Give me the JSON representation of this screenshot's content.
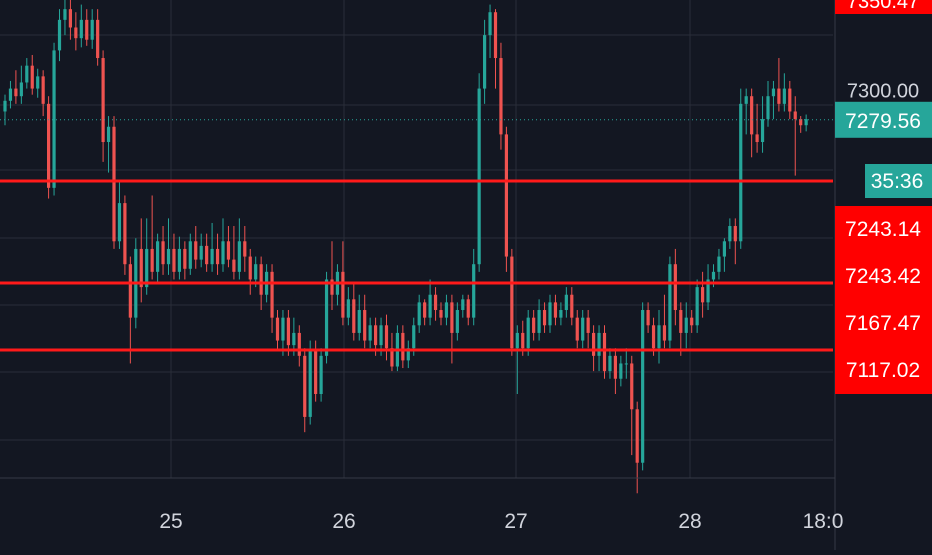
{
  "chart_data": {
    "type": "candlestick",
    "x_ticks": [
      "25",
      "26",
      "27",
      "28",
      "18:0"
    ],
    "y_ticks": [
      "7300.00"
    ],
    "ylim": [
      7045,
      7358
    ],
    "grid": true,
    "colors": {
      "background": "#131722",
      "up": "#26a69a",
      "down": "#ef5350",
      "level_line": "#ff1a1a",
      "price_tag": "#26a69a",
      "level_tag": "#ff0000",
      "grid": "#2a2e39",
      "text": "#d1d4dc"
    },
    "current_price": {
      "value": 7279.56,
      "label": "7279.56"
    },
    "countdown": "35:36",
    "horizontal_levels": [
      {
        "value": 7243.14,
        "label": "7243.14"
      },
      {
        "value": 7243.42,
        "label": "7243.42"
      },
      {
        "value": 7167.47,
        "label": "7167.47"
      },
      {
        "value": 7117.02,
        "label": "7117.02"
      }
    ],
    "top_clipped_label": "7350.47",
    "candles": [
      [
        7285,
        7292,
        7276,
        7296
      ],
      [
        7292,
        7300,
        7287,
        7305
      ],
      [
        7300,
        7295,
        7290,
        7312
      ],
      [
        7295,
        7304,
        7290,
        7315
      ],
      [
        7304,
        7315,
        7300,
        7320
      ],
      [
        7315,
        7300,
        7296,
        7322
      ],
      [
        7300,
        7308,
        7294,
        7313
      ],
      [
        7308,
        7290,
        7282,
        7312
      ],
      [
        7290,
        7235,
        7228,
        7295
      ],
      [
        7235,
        7325,
        7230,
        7330
      ],
      [
        7325,
        7345,
        7318,
        7352
      ],
      [
        7345,
        7352,
        7335,
        7360
      ],
      [
        7352,
        7340,
        7332,
        7360
      ],
      [
        7340,
        7333,
        7325,
        7350
      ],
      [
        7333,
        7345,
        7327,
        7355
      ],
      [
        7345,
        7332,
        7328,
        7352
      ],
      [
        7332,
        7345,
        7326,
        7352
      ],
      [
        7345,
        7320,
        7315,
        7352
      ],
      [
        7320,
        7265,
        7252,
        7325
      ],
      [
        7265,
        7275,
        7245,
        7282
      ],
      [
        7275,
        7200,
        7195,
        7282
      ],
      [
        7200,
        7225,
        7195,
        7240
      ],
      [
        7225,
        7185,
        7178,
        7230
      ],
      [
        7185,
        7150,
        7120,
        7190
      ],
      [
        7150,
        7195,
        7143,
        7202
      ],
      [
        7195,
        7170,
        7160,
        7215
      ],
      [
        7170,
        7195,
        7165,
        7215
      ],
      [
        7195,
        7180,
        7175,
        7230
      ],
      [
        7180,
        7200,
        7172,
        7205
      ],
      [
        7200,
        7185,
        7178,
        7210
      ],
      [
        7185,
        7195,
        7178,
        7215
      ],
      [
        7195,
        7180,
        7175,
        7205
      ],
      [
        7180,
        7195,
        7175,
        7203
      ],
      [
        7195,
        7182,
        7175,
        7200
      ],
      [
        7182,
        7200,
        7178,
        7205
      ],
      [
        7200,
        7188,
        7182,
        7210
      ],
      [
        7188,
        7197,
        7183,
        7205
      ],
      [
        7197,
        7185,
        7180,
        7205
      ],
      [
        7185,
        7195,
        7180,
        7212
      ],
      [
        7195,
        7185,
        7178,
        7205
      ],
      [
        7185,
        7200,
        7180,
        7215
      ],
      [
        7200,
        7188,
        7183,
        7210
      ],
      [
        7188,
        7180,
        7175,
        7210
      ],
      [
        7180,
        7200,
        7175,
        7215
      ],
      [
        7200,
        7190,
        7180,
        7210
      ],
      [
        7190,
        7175,
        7165,
        7195
      ],
      [
        7175,
        7185,
        7170,
        7190
      ],
      [
        7185,
        7165,
        7155,
        7190
      ],
      [
        7165,
        7180,
        7160,
        7185
      ],
      [
        7180,
        7150,
        7140,
        7185
      ],
      [
        7150,
        7135,
        7128,
        7155
      ],
      [
        7135,
        7150,
        7125,
        7155
      ],
      [
        7150,
        7132,
        7125,
        7155
      ],
      [
        7132,
        7140,
        7125,
        7150
      ],
      [
        7140,
        7125,
        7118,
        7145
      ],
      [
        7125,
        7085,
        7075,
        7130
      ],
      [
        7085,
        7128,
        7080,
        7135
      ],
      [
        7128,
        7100,
        7095,
        7135
      ],
      [
        7100,
        7125,
        7095,
        7130
      ],
      [
        7125,
        7175,
        7120,
        7180
      ],
      [
        7175,
        7165,
        7155,
        7200
      ],
      [
        7165,
        7180,
        7158,
        7185
      ],
      [
        7180,
        7150,
        7145,
        7200
      ],
      [
        7150,
        7162,
        7145,
        7170
      ],
      [
        7162,
        7140,
        7135,
        7172
      ],
      [
        7140,
        7155,
        7135,
        7165
      ],
      [
        7155,
        7135,
        7130,
        7165
      ],
      [
        7135,
        7145,
        7130,
        7150
      ],
      [
        7145,
        7132,
        7125,
        7150
      ],
      [
        7132,
        7145,
        7125,
        7150
      ],
      [
        7145,
        7130,
        7122,
        7152
      ],
      [
        7130,
        7118,
        7115,
        7140
      ],
      [
        7118,
        7140,
        7115,
        7145
      ],
      [
        7140,
        7122,
        7117,
        7145
      ],
      [
        7122,
        7130,
        7117,
        7135
      ],
      [
        7130,
        7145,
        7125,
        7150
      ],
      [
        7145,
        7160,
        7140,
        7165
      ],
      [
        7160,
        7150,
        7145,
        7162
      ],
      [
        7150,
        7165,
        7145,
        7175
      ],
      [
        7165,
        7155,
        7148,
        7170
      ],
      [
        7155,
        7150,
        7145,
        7160
      ],
      [
        7150,
        7160,
        7145,
        7165
      ],
      [
        7160,
        7140,
        7120,
        7165
      ],
      [
        7140,
        7155,
        7135,
        7160
      ],
      [
        7155,
        7162,
        7150,
        7165
      ],
      [
        7162,
        7150,
        7145,
        7165
      ],
      [
        7150,
        7185,
        7145,
        7195
      ],
      [
        7185,
        7300,
        7180,
        7310
      ],
      [
        7300,
        7335,
        7290,
        7345
      ],
      [
        7335,
        7350,
        7320,
        7355
      ],
      [
        7350,
        7320,
        7300,
        7352
      ],
      [
        7320,
        7270,
        7260,
        7330
      ],
      [
        7270,
        7190,
        7180,
        7275
      ],
      [
        7190,
        7130,
        7125,
        7195
      ],
      [
        7130,
        7140,
        7100,
        7145
      ],
      [
        7140,
        7130,
        7125,
        7148
      ],
      [
        7130,
        7150,
        7125,
        7155
      ],
      [
        7150,
        7140,
        7135,
        7155
      ],
      [
        7140,
        7155,
        7135,
        7162
      ],
      [
        7155,
        7145,
        7140,
        7160
      ],
      [
        7145,
        7160,
        7140,
        7165
      ],
      [
        7160,
        7150,
        7145,
        7165
      ],
      [
        7150,
        7155,
        7145,
        7160
      ],
      [
        7155,
        7165,
        7150,
        7170
      ],
      [
        7165,
        7150,
        7145,
        7170
      ],
      [
        7150,
        7135,
        7130,
        7155
      ],
      [
        7135,
        7150,
        7130,
        7155
      ],
      [
        7150,
        7140,
        7130,
        7155
      ],
      [
        7140,
        7125,
        7115,
        7145
      ],
      [
        7125,
        7140,
        7115,
        7145
      ],
      [
        7140,
        7115,
        7110,
        7145
      ],
      [
        7115,
        7125,
        7110,
        7130
      ],
      [
        7125,
        7110,
        7100,
        7130
      ],
      [
        7110,
        7120,
        7105,
        7125
      ],
      [
        7120,
        7120,
        7110,
        7130
      ],
      [
        7120,
        7090,
        7060,
        7125
      ],
      [
        7090,
        7055,
        7035,
        7095
      ],
      [
        7055,
        7155,
        7050,
        7160
      ],
      [
        7155,
        7145,
        7140,
        7160
      ],
      [
        7145,
        7130,
        7125,
        7150
      ],
      [
        7130,
        7145,
        7120,
        7155
      ],
      [
        7145,
        7135,
        7130,
        7165
      ],
      [
        7135,
        7185,
        7130,
        7190
      ],
      [
        7185,
        7155,
        7145,
        7195
      ],
      [
        7155,
        7140,
        7125,
        7160
      ],
      [
        7140,
        7150,
        7130,
        7160
      ],
      [
        7150,
        7145,
        7140,
        7155
      ],
      [
        7145,
        7170,
        7140,
        7175
      ],
      [
        7170,
        7160,
        7150,
        7180
      ],
      [
        7160,
        7175,
        7155,
        7185
      ],
      [
        7175,
        7180,
        7170,
        7185
      ],
      [
        7180,
        7190,
        7175,
        7195
      ],
      [
        7190,
        7200,
        7180,
        7202
      ],
      [
        7200,
        7210,
        7195,
        7215
      ],
      [
        7210,
        7200,
        7185,
        7215
      ],
      [
        7200,
        7290,
        7195,
        7300
      ],
      [
        7290,
        7295,
        7270,
        7300
      ],
      [
        7295,
        7270,
        7255,
        7300
      ],
      [
        7270,
        7265,
        7258,
        7290
      ],
      [
        7265,
        7280,
        7258,
        7295
      ],
      [
        7280,
        7295,
        7275,
        7305
      ],
      [
        7295,
        7300,
        7280,
        7305
      ],
      [
        7300,
        7290,
        7285,
        7320
      ],
      [
        7290,
        7300,
        7285,
        7310
      ],
      [
        7300,
        7285,
        7280,
        7305
      ],
      [
        7285,
        7280,
        7243,
        7295
      ],
      [
        7280,
        7276,
        7271,
        7282
      ],
      [
        7276,
        7280,
        7272,
        7283
      ]
    ]
  }
}
